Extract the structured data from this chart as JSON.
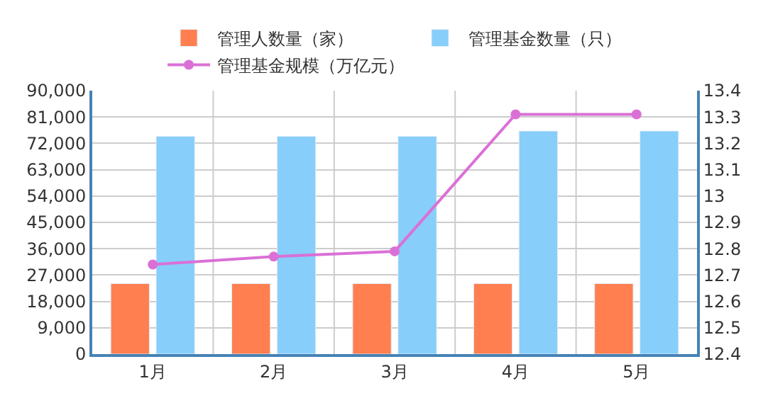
{
  "chart_data": {
    "type": "bar",
    "categories": [
      "1月",
      "2月",
      "3月",
      "4月",
      "5月"
    ],
    "series": [
      {
        "name": "管理人数量（家）",
        "color": "#ff7f50",
        "values": [
          24100,
          24100,
          24100,
          24100,
          24100
        ]
      },
      {
        "name": "管理基金数量（只）",
        "color": "#87cefa",
        "values": [
          74400,
          74400,
          74400,
          76200,
          76200
        ]
      },
      {
        "name": "管理基金规模（万亿元）",
        "type": "line",
        "axis": "y2",
        "color": "#da70d6",
        "values": [
          12.74,
          12.77,
          12.79,
          13.31,
          13.31
        ]
      }
    ],
    "ylim": [
      0,
      90000
    ],
    "yticks": [
      {
        "value": 0,
        "label": "0"
      },
      {
        "value": 9000,
        "label": "9,000"
      },
      {
        "value": 18000,
        "label": "18,000"
      },
      {
        "value": 27000,
        "label": "27,000"
      },
      {
        "value": 36000,
        "label": "36,000"
      },
      {
        "value": 45000,
        "label": "45,000"
      },
      {
        "value": 54000,
        "label": "54,000"
      },
      {
        "value": 63000,
        "label": "63,000"
      },
      {
        "value": 72000,
        "label": "72,000"
      },
      {
        "value": 81000,
        "label": "81,000"
      },
      {
        "value": 90000,
        "label": "90,000"
      }
    ],
    "y2lim": [
      12.4,
      13.4
    ],
    "y2ticks": [
      12.4,
      12.5,
      12.6,
      12.7,
      12.8,
      12.9,
      13,
      13.1,
      13.2,
      13.3,
      13.4
    ],
    "grid": true,
    "legend": "top",
    "marker": "circle",
    "line_style": "solid"
  }
}
